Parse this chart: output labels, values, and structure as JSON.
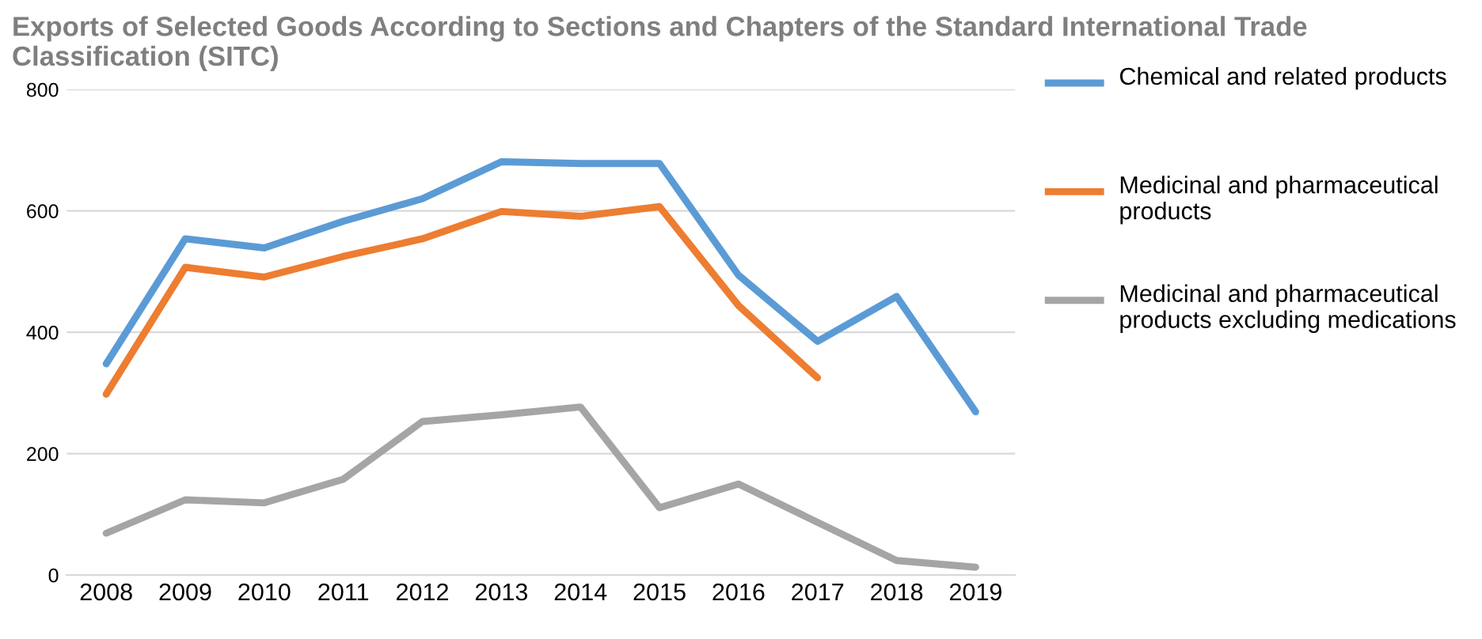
{
  "chart_data": {
    "type": "line",
    "title": "Exports of Selected Goods According to Sections and Chapters of the Standard International Trade Classification (SITC)",
    "categories": [
      "2008",
      "2009",
      "2010",
      "2011",
      "2012",
      "2013",
      "2014",
      "2015",
      "2016",
      "2017",
      "2018",
      "2019"
    ],
    "series": [
      {
        "name": "Chemical and related products",
        "color": "#5b9bd5",
        "values": [
          348,
          554,
          539,
          583,
          620,
          681,
          678,
          678,
          494,
          385,
          459,
          269
        ]
      },
      {
        "name": "Medicinal and pharmaceutical products",
        "color": "#ed7d31",
        "values": [
          298,
          507,
          491,
          525,
          554,
          599,
          591,
          607,
          444,
          325,
          null,
          null
        ]
      },
      {
        "name": "Medicinal and pharmaceutical products excluding medications",
        "color": "#a5a5a5",
        "values": [
          69,
          124,
          119,
          158,
          253,
          264,
          277,
          111,
          150,
          87,
          24,
          13
        ]
      }
    ],
    "ylim": [
      0,
      800
    ],
    "yticks": [
      0,
      200,
      400,
      600,
      800
    ],
    "grid": "y",
    "legend": "right",
    "marker": "none",
    "line_style": "solid"
  }
}
